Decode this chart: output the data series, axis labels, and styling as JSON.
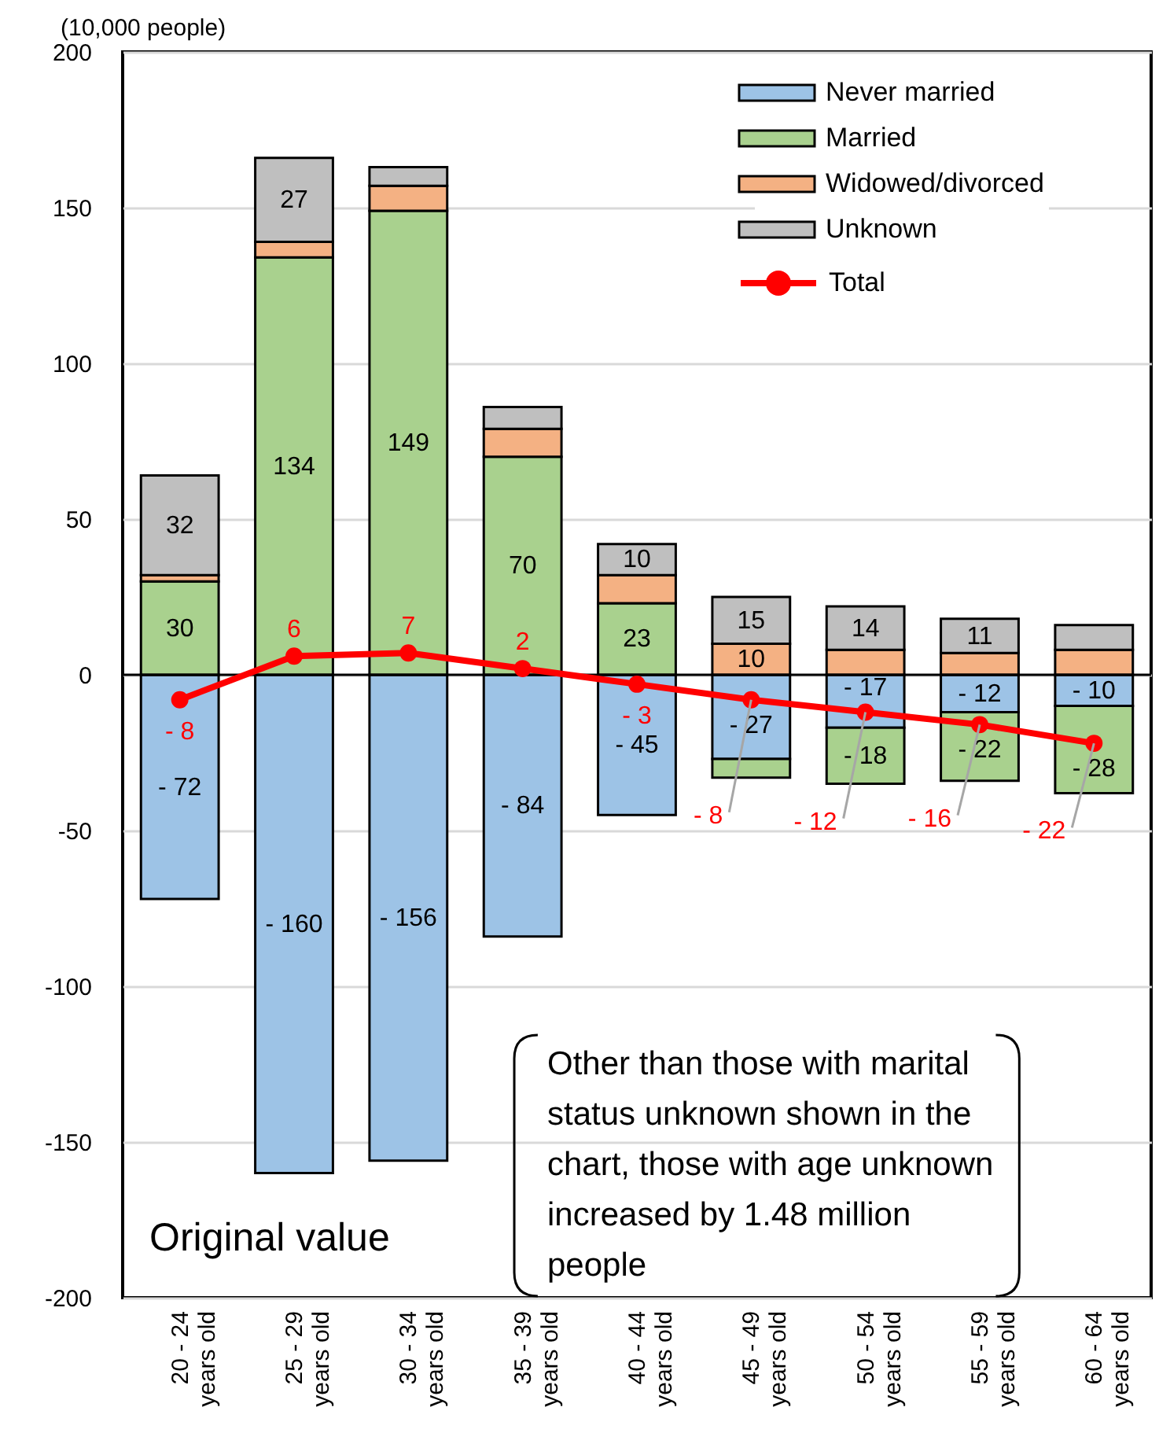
{
  "chart_data": {
    "type": "bar",
    "stacked": true,
    "ylabel": "(10,000 people)",
    "categories": [
      "20 - 24\nyears old",
      "25 - 29\nyears old",
      "30 - 34\nyears old",
      "35 - 39\nyears old",
      "40 - 44\nyears old",
      "45 - 49\nyears old",
      "50 - 54\nyears old",
      "55 - 59\nyears old",
      "60 - 64\nyears old"
    ],
    "ylim": [
      -200,
      200
    ],
    "yticks": [
      -200,
      -150,
      -100,
      -50,
      0,
      50,
      100,
      150,
      200
    ],
    "grid": "y",
    "legend": "top right",
    "marker": "circle",
    "series": [
      {
        "name": "Never married",
        "color": "#9dc3e6",
        "values": [
          -72,
          -160,
          -156,
          -84,
          -45,
          -27,
          -17,
          -12,
          -10
        ],
        "value_labels": [
          "- 72",
          "- 160",
          "- 156",
          "- 84",
          "- 45",
          "- 27",
          "- 17",
          "- 12",
          "- 10"
        ]
      },
      {
        "name": "Married",
        "color": "#a9d18e",
        "values": [
          30,
          134,
          149,
          70,
          23,
          -6,
          -18,
          -22,
          -28
        ],
        "value_labels": [
          "30",
          "134",
          "149",
          "70",
          "23",
          null,
          "- 18",
          "- 22",
          "- 28"
        ]
      },
      {
        "name": "Widowed/divorced",
        "color": "#f4b183",
        "values": [
          2,
          5,
          8,
          9,
          9,
          10,
          8,
          7,
          8
        ],
        "value_labels": [
          null,
          null,
          null,
          null,
          null,
          "10",
          null,
          null,
          null
        ]
      },
      {
        "name": "Unknown",
        "color": "#bfbfbf",
        "values": [
          32,
          27,
          6,
          7,
          10,
          15,
          14,
          11,
          8
        ],
        "value_labels": [
          "32",
          "27",
          null,
          null,
          "10",
          "15",
          "14",
          "11",
          null
        ]
      },
      {
        "name": "Total",
        "type": "line",
        "color": "#ff0000",
        "values": [
          -8,
          6,
          7,
          2,
          -3,
          -8,
          -12,
          -16,
          -22
        ],
        "value_labels": [
          "- 8",
          "6",
          "7",
          "2",
          "- 3",
          "- 8",
          "- 12",
          "- 16",
          "- 22"
        ]
      }
    ],
    "ref_lines": [
      {
        "axis": "y",
        "value": 0,
        "color": "#000000"
      }
    ],
    "annotations": [
      "Original value",
      "Other than those with marital status unknown shown in the chart, those with age unknown increased by 1.48 million people"
    ]
  }
}
